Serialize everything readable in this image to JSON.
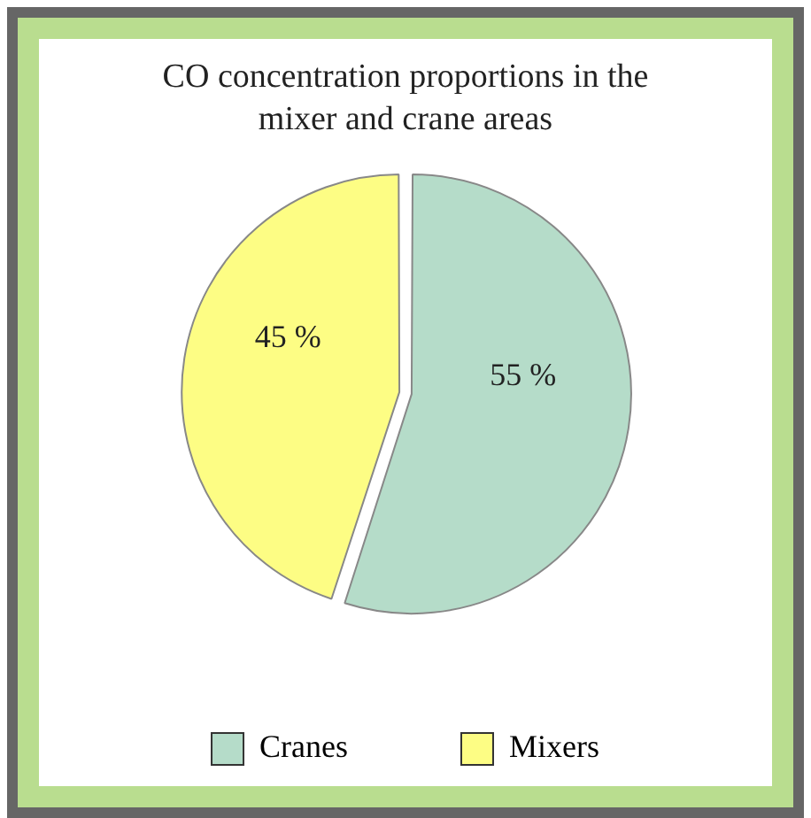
{
  "chart_data": {
    "type": "pie",
    "title": "CO concentration proportions in the mixer and crane areas",
    "categories": [
      "Cranes",
      "Mixers"
    ],
    "values": [
      55,
      45
    ],
    "colors": [
      "#b5dcc9",
      "#fdfd84"
    ],
    "value_labels": [
      "55 %",
      "45 %"
    ],
    "legend": "bottom"
  }
}
